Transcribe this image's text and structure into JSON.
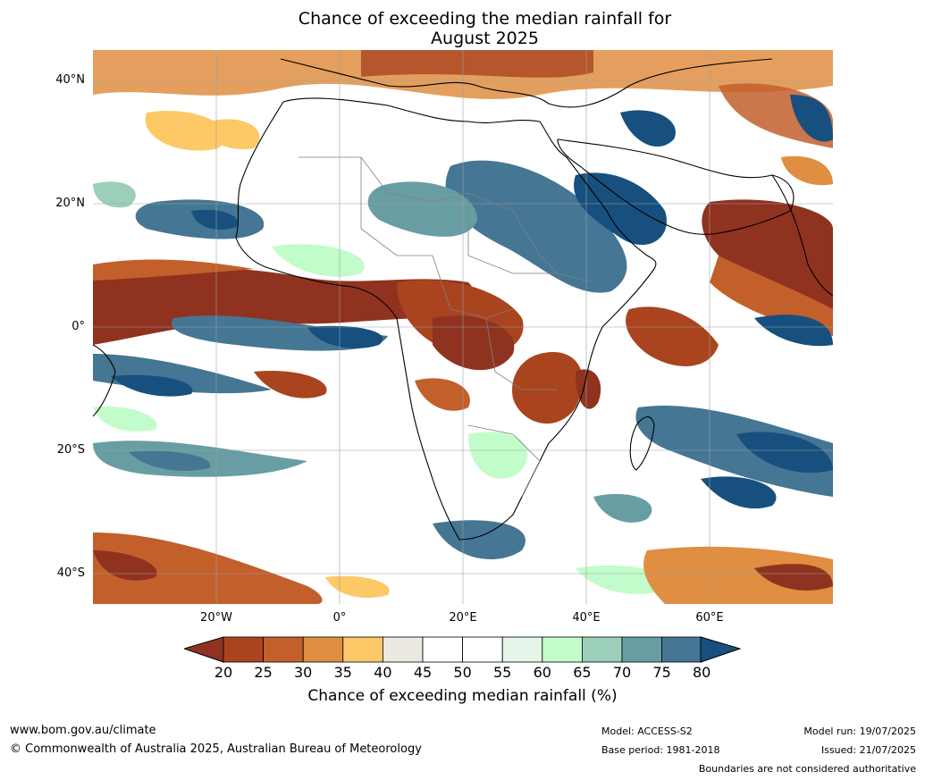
{
  "title": {
    "line1": "Chance of exceeding the median rainfall for",
    "line2": "August 2025"
  },
  "map": {
    "lat_labels": [
      "40°N",
      "20°N",
      "0°",
      "20°S",
      "40°S"
    ],
    "lon_labels": [
      "20°W",
      "0°",
      "20°E",
      "40°E",
      "60°E"
    ],
    "lon_range": [
      -40,
      80
    ],
    "lat_range": [
      -45,
      45
    ]
  },
  "colorbar": {
    "ticks": [
      "20",
      "25",
      "30",
      "35",
      "40",
      "45",
      "50",
      "55",
      "60",
      "65",
      "70",
      "75",
      "80"
    ],
    "colors": [
      "#8f3320",
      "#a9441f",
      "#c35f2b",
      "#df8e42",
      "#fdc866",
      "#ece8e2",
      "#ffffff",
      "#ffffff",
      "#e6f5e9",
      "#c2fcca",
      "#9ccfb9",
      "#689ea3",
      "#457694",
      "#17507e"
    ],
    "label": "Chance of exceeding median rainfall (%)"
  },
  "footer": {
    "url": "www.bom.gov.au/climate",
    "copyright": "© Commonwealth of Australia 2025, Australian Bureau of Meteorology",
    "model": "Model: ACCESS-S2",
    "base_period": "Base period: 1981-2018",
    "model_run": "Model run: 19/07/2025",
    "issued": "Issued: 21/07/2025",
    "disclaimer": "Boundaries are not considered authoritative"
  }
}
